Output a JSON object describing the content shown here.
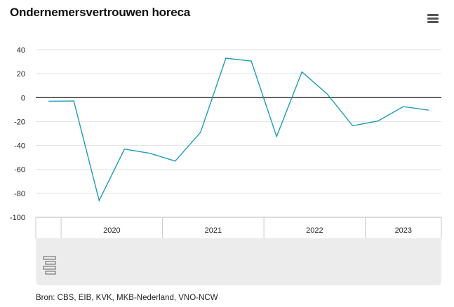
{
  "title": "Ondernemersvertrouwen horeca",
  "source": "Bron: CBS, EIB, KVK, MKB-Nederland, VNO-NCW",
  "menu_icon": "hamburger-menu-icon",
  "logo_icon": "cbs-logo-icon",
  "colors": {
    "line": "#1e9bbd",
    "grid": "#e3e3e3",
    "zero": "#333333",
    "band": "#ececec"
  },
  "chart_data": {
    "type": "line",
    "title": "Ondernemersvertrouwen horeca",
    "xlabel": "",
    "ylabel": "",
    "ylim": [
      -100,
      40
    ],
    "yticks": [
      40,
      20,
      0,
      -20,
      -40,
      -60,
      -80,
      -100
    ],
    "year_labels": [
      "2020",
      "2021",
      "2022",
      "2023"
    ],
    "x": [
      "2019 Q4",
      "2020 Q1",
      "2020 Q2",
      "2020 Q3",
      "2020 Q4",
      "2021 Q1",
      "2021 Q2",
      "2021 Q3",
      "2021 Q4",
      "2022 Q1",
      "2022 Q2",
      "2022 Q3",
      "2022 Q4",
      "2023 Q1",
      "2023 Q2",
      "2023 Q3"
    ],
    "series": [
      {
        "values": [
          -3,
          -2.8,
          -86,
          -43,
          -46.5,
          -53,
          -29,
          33,
          30.5,
          -32.5,
          21.5,
          3,
          -23.5,
          -19.5,
          -7.5,
          -10.5
        ]
      }
    ],
    "grid": true,
    "legend": "none"
  }
}
